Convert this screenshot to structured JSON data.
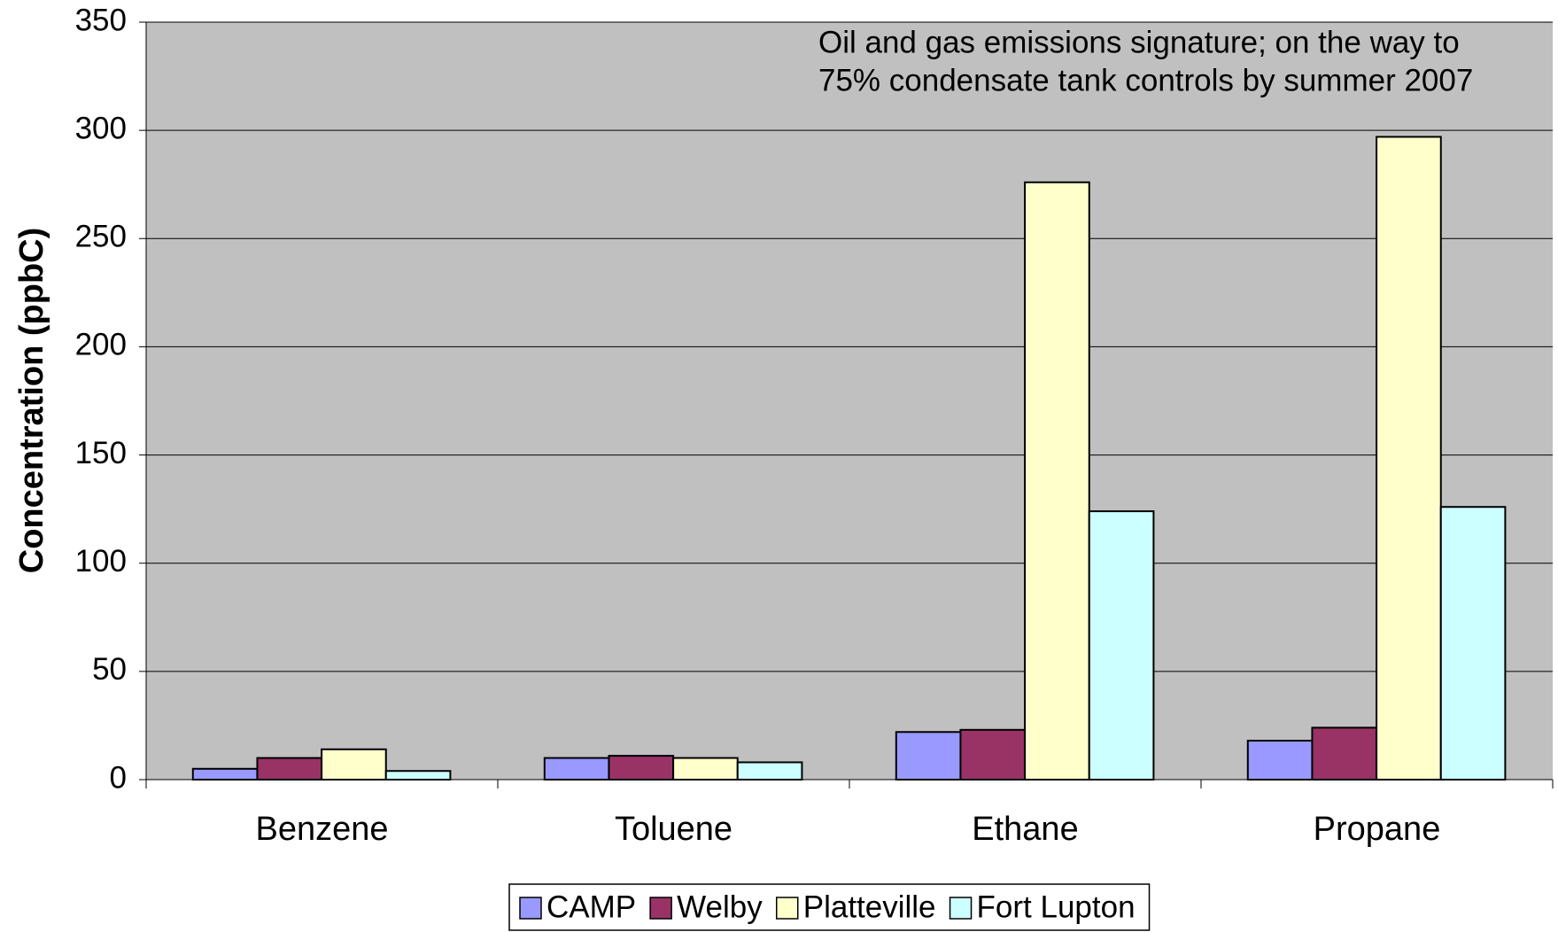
{
  "chart_data": {
    "type": "bar",
    "annotation": [
      "Oil and gas emissions signature; on the way to",
      "75% condensate tank controls by summer 2007"
    ],
    "y_label": "Concentration (ppbC)",
    "categories": [
      "Benzene",
      "Toluene",
      "Ethane",
      "Propane"
    ],
    "series": [
      {
        "name": "CAMP",
        "color": "#9999ff",
        "values": [
          5,
          10,
          22,
          18
        ]
      },
      {
        "name": "Welby",
        "color": "#993366",
        "values": [
          10,
          11,
          23,
          24
        ]
      },
      {
        "name": "Platteville",
        "color": "#ffffcc",
        "values": [
          14,
          10,
          276,
          297
        ]
      },
      {
        "name": "Fort Lupton",
        "color": "#ccffff",
        "values": [
          4,
          8,
          124,
          126
        ]
      }
    ],
    "ylim": [
      0,
      350
    ],
    "yticks": [
      0,
      50,
      100,
      150,
      200,
      250,
      300,
      350
    ],
    "grid": true,
    "plot_background": "#c0c0c0",
    "legend": "bottom"
  }
}
